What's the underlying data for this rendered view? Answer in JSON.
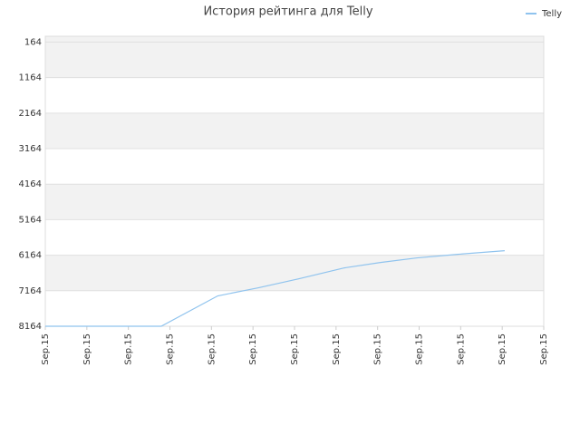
{
  "chart_data": {
    "type": "line",
    "title": "История рейтинга для Telly",
    "x": [
      0,
      1,
      2,
      2.79,
      4.15,
      5.13,
      6.11,
      7.2,
      8.07,
      8.95,
      9.93,
      11.06
    ],
    "series": [
      {
        "name": "Telly",
        "color": "#8fc3ee",
        "values": [
          8164,
          8164,
          8164,
          8164,
          7310,
          7081,
          6826,
          6521,
          6368,
          6240,
          6139,
          6037
        ]
      }
    ],
    "xlim": [
      0,
      12
    ],
    "xticks": [
      {
        "value": 0,
        "label": "Sep.15"
      },
      {
        "value": 1,
        "label": "Sep.15"
      },
      {
        "value": 2,
        "label": "Sep.15"
      },
      {
        "value": 3,
        "label": "Sep.15"
      },
      {
        "value": 4,
        "label": "Sep.15"
      },
      {
        "value": 5,
        "label": "Sep.15"
      },
      {
        "value": 6,
        "label": "Sep.15"
      },
      {
        "value": 7,
        "label": "Sep.15"
      },
      {
        "value": 8,
        "label": "Sep.15"
      },
      {
        "value": 9,
        "label": "Sep.15"
      },
      {
        "value": 10,
        "label": "Sep.15"
      },
      {
        "value": 11,
        "label": "Sep.15"
      },
      {
        "value": 12,
        "label": "Sep.15"
      }
    ],
    "ylim": [
      8164,
      0
    ],
    "yticks": [
      164,
      1164,
      2164,
      3164,
      4164,
      5164,
      6164,
      7164,
      8164
    ],
    "grid": true,
    "legend": "top-right"
  }
}
